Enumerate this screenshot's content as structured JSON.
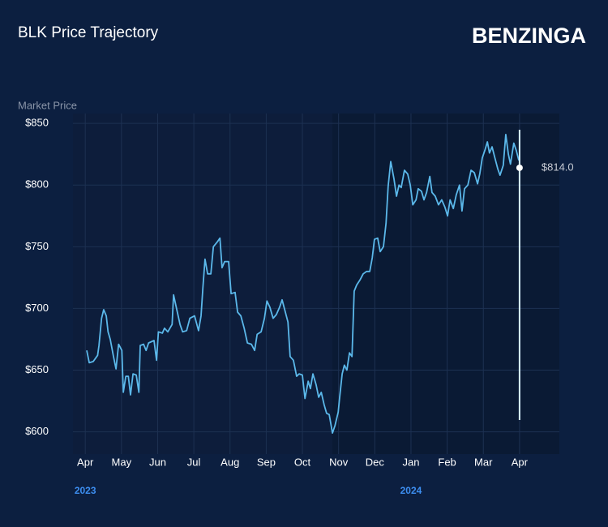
{
  "brand": "BENZINGA",
  "chart_data": {
    "type": "line",
    "title": "BLK Price Trajectory",
    "y_label": "Market Price",
    "color": "#5bb8ea",
    "grid": true,
    "x": [
      0.04,
      0.11,
      0.22,
      0.34,
      0.38,
      0.45,
      0.51,
      0.58,
      0.63,
      0.69,
      0.78,
      0.85,
      0.92,
      1.01,
      1.05,
      1.12,
      1.19,
      1.25,
      1.32,
      1.41,
      1.48,
      1.52,
      1.61,
      1.68,
      1.75,
      1.9,
      1.97,
      2.02,
      2.13,
      2.19,
      2.28,
      2.4,
      2.44,
      2.53,
      2.62,
      2.69,
      2.8,
      2.89,
      3.02,
      3.13,
      3.2,
      3.25,
      3.31,
      3.38,
      3.47,
      3.54,
      3.65,
      3.72,
      3.78,
      3.85,
      3.96,
      4.03,
      4.14,
      4.21,
      4.3,
      4.39,
      4.48,
      4.59,
      4.68,
      4.75,
      4.86,
      4.95,
      5.02,
      5.1,
      5.19,
      5.28,
      5.37,
      5.44,
      5.51,
      5.6,
      5.66,
      5.75,
      5.84,
      5.91,
      6.0,
      6.07,
      6.16,
      6.22,
      6.29,
      6.38,
      6.45,
      6.52,
      6.6,
      6.67,
      6.74,
      6.83,
      6.9,
      6.99,
      7.03,
      7.1,
      7.16,
      7.23,
      7.3,
      7.37,
      7.43,
      7.5,
      7.59,
      7.68,
      7.77,
      7.86,
      7.93,
      7.99,
      8.08,
      8.15,
      8.24,
      8.31,
      8.37,
      8.44,
      8.53,
      8.6,
      8.67,
      8.73,
      8.82,
      8.91,
      8.98,
      9.05,
      9.14,
      9.2,
      9.29,
      9.36,
      9.43,
      9.52,
      9.58,
      9.67,
      9.76,
      9.85,
      9.94,
      10.01,
      10.08,
      10.17,
      10.25,
      10.34,
      10.41,
      10.48,
      10.57,
      10.66,
      10.75,
      10.84,
      10.9,
      10.97,
      11.04,
      11.11,
      11.17,
      11.24,
      11.31,
      11.4,
      11.46,
      11.55,
      11.62,
      11.69,
      11.75,
      11.84,
      11.91,
      11.98
    ],
    "values": [
      666,
      656,
      657,
      662,
      670,
      692,
      699,
      694,
      681,
      675,
      661,
      651,
      671,
      666,
      632,
      645,
      645,
      630,
      647,
      646,
      632,
      670,
      671,
      666,
      672,
      674,
      658,
      681,
      680,
      684,
      681,
      687,
      711,
      699,
      687,
      681,
      682,
      692,
      694,
      682,
      694,
      717,
      740,
      728,
      728,
      750,
      754,
      757,
      733,
      738,
      738,
      712,
      713,
      697,
      694,
      684,
      672,
      671,
      666,
      679,
      681,
      692,
      706,
      701,
      692,
      695,
      701,
      707,
      699,
      689,
      661,
      658,
      645,
      647,
      646,
      627,
      641,
      635,
      647,
      638,
      628,
      632,
      622,
      615,
      614,
      599,
      605,
      616,
      628,
      647,
      654,
      650,
      664,
      661,
      714,
      719,
      723,
      728,
      730,
      730,
      741,
      756,
      757,
      746,
      750,
      769,
      799,
      819,
      805,
      791,
      800,
      798,
      812,
      809,
      800,
      784,
      788,
      797,
      795,
      788,
      794,
      807,
      794,
      791,
      784,
      788,
      782,
      775,
      788,
      781,
      792,
      800,
      779,
      797,
      800,
      812,
      810,
      801,
      809,
      822,
      828,
      835,
      826,
      831,
      823,
      813,
      808,
      816,
      841,
      825,
      817,
      834,
      828,
      820
    ],
    "xlim": [
      -0.34,
      13.1
    ],
    "ylim": [
      582,
      858
    ],
    "xticks": [
      {
        "value": 0,
        "label": "Apr"
      },
      {
        "value": 1,
        "label": "May"
      },
      {
        "value": 2,
        "label": "Jun"
      },
      {
        "value": 3,
        "label": "Jul"
      },
      {
        "value": 4,
        "label": "Aug"
      },
      {
        "value": 5,
        "label": "Sep"
      },
      {
        "value": 6,
        "label": "Oct"
      },
      {
        "value": 7,
        "label": "Nov"
      },
      {
        "value": 8,
        "label": "Dec"
      },
      {
        "value": 9,
        "label": "Jan"
      },
      {
        "value": 10,
        "label": "Feb"
      },
      {
        "value": 11,
        "label": "Mar"
      },
      {
        "value": 12,
        "label": "Apr"
      }
    ],
    "yticks": [
      {
        "value": 600,
        "label": "$600"
      },
      {
        "value": 650,
        "label": "$650"
      },
      {
        "value": 700,
        "label": "$700"
      },
      {
        "value": 750,
        "label": "$750"
      },
      {
        "value": 800,
        "label": "$800"
      },
      {
        "value": 850,
        "label": "$850"
      }
    ],
    "year_labels": [
      {
        "x": 0,
        "label": "2023"
      },
      {
        "x": 9,
        "label": "2024"
      }
    ],
    "marker": {
      "x": 12,
      "value": 814,
      "label": "$814.0"
    }
  }
}
